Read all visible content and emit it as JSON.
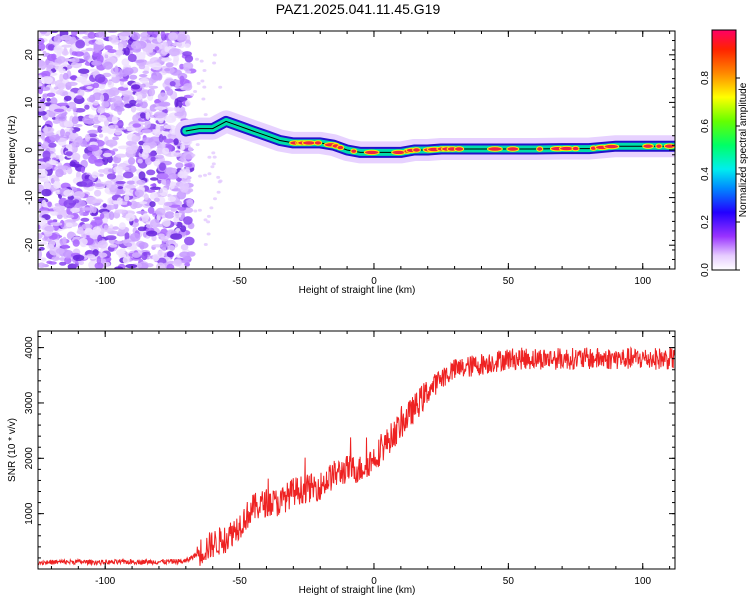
{
  "title": "PAZ1.2025.041.11.45.G19",
  "colors": {
    "snr_line": "#ee2222",
    "ridge_outer": "#2211cc",
    "ridge_mid": "#00ddaa",
    "ridge_core": "#ee2244",
    "noise": "#8844ee"
  },
  "chart_data": [
    {
      "type": "heatmap",
      "xlabel": "Height of straight line (km)",
      "ylabel": "Frequency (Hz)",
      "xlim": [
        -125,
        112
      ],
      "ylim": [
        -25,
        25
      ],
      "xticks": [
        -100,
        -50,
        0,
        50,
        100
      ],
      "xtick_labels": [
        "-100",
        "-50",
        "0",
        "50",
        "100"
      ],
      "yticks": [
        -20,
        -10,
        0,
        10,
        20
      ],
      "ytick_labels": [
        "-20",
        "-10",
        "0",
        "10",
        "20"
      ],
      "grid": false,
      "noise_region_x": [
        -125,
        -68
      ],
      "ridge": {
        "x": [
          -70,
          -65,
          -60,
          -55,
          -50,
          -45,
          -40,
          -35,
          -30,
          -25,
          -20,
          -15,
          -10,
          -5,
          0,
          5,
          10,
          15,
          20,
          25,
          30,
          40,
          50,
          60,
          70,
          80,
          90,
          100,
          112
        ],
        "y": [
          4,
          4.5,
          4.5,
          6,
          5,
          4,
          3,
          2,
          1.5,
          1.5,
          1.5,
          1,
          0,
          -0.5,
          -0.5,
          -0.5,
          -0.5,
          0,
          0,
          0.2,
          0.2,
          0.2,
          0.2,
          0.2,
          0.3,
          0.3,
          0.8,
          0.8,
          0.8
        ]
      },
      "colorbar": {
        "label": "Normalized spectral amplitude",
        "range": [
          0,
          1
        ],
        "ticks": [
          0.0,
          0.2,
          0.4,
          0.6,
          0.8
        ],
        "tick_labels": [
          "0.0",
          "0.2",
          "0.4",
          "0.6",
          "0.8"
        ]
      }
    },
    {
      "type": "line",
      "xlabel": "Height of straight line (km)",
      "ylabel": "SNR (10 * v/v)",
      "xlim": [
        -125,
        112
      ],
      "ylim": [
        0,
        4300
      ],
      "xticks": [
        -100,
        -50,
        0,
        50,
        100
      ],
      "xtick_labels": [
        "-100",
        "-50",
        "0",
        "50",
        "100"
      ],
      "yticks": [
        1000,
        2000,
        3000,
        4000
      ],
      "ytick_labels": [
        "1000",
        "2000",
        "3000",
        "4000"
      ],
      "grid": false,
      "series": [
        {
          "x": [
            -125,
            -110,
            -100,
            -90,
            -80,
            -70,
            -65,
            -60,
            -55,
            -50,
            -45,
            -40,
            -35,
            -30,
            -25,
            -20,
            -15,
            -10,
            -5,
            0,
            5,
            10,
            15,
            20,
            25,
            30,
            35,
            40,
            50,
            60,
            70,
            80,
            90,
            100,
            112
          ],
          "values": [
            120,
            130,
            120,
            130,
            130,
            140,
            300,
            450,
            550,
            800,
            1100,
            1200,
            1200,
            1400,
            1450,
            1500,
            1700,
            1800,
            1800,
            2000,
            2300,
            2600,
            2900,
            3200,
            3450,
            3600,
            3650,
            3700,
            3800,
            3800,
            3800,
            3800,
            3800,
            3800,
            3800
          ]
        }
      ]
    }
  ]
}
